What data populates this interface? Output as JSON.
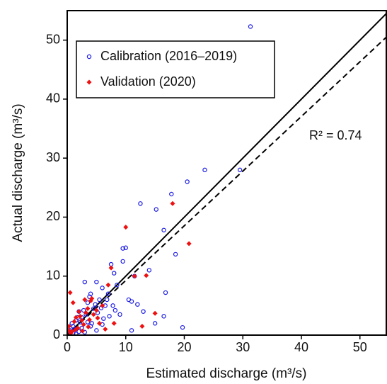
{
  "chart_data": {
    "type": "scatter",
    "x_label": "Estimated discharge (m³/s)",
    "y_label": "Actual discharge (m³/s)",
    "annotation": "R² = 0.74",
    "xlim": [
      0,
      54.5
    ],
    "ylim": [
      0,
      55
    ],
    "xticks": [
      0,
      10,
      20,
      30,
      40,
      50
    ],
    "yticks": [
      0,
      10,
      20,
      30,
      40,
      50
    ],
    "legend": "upper left",
    "series": [
      {
        "name": "Calibration (2016–2019)",
        "color": "#1a1ae6",
        "marker": "circle",
        "x": [
          31.3,
          29.5,
          23.5,
          20.5,
          17.8,
          12.5,
          15.2,
          16.5,
          18.5,
          10,
          9.5,
          9.5,
          14,
          11.5,
          8,
          7.5,
          16.8,
          11,
          16.5,
          19.7,
          11,
          15,
          13,
          6,
          5,
          3,
          4,
          8.5,
          7,
          6.5,
          5.5,
          4.5,
          3.5,
          2.5,
          2,
          1.5,
          1,
          0.5,
          0.3,
          0.8,
          1.2,
          1.8,
          2.2,
          2.8,
          3.2,
          3.8,
          4.2,
          4.8,
          5.2,
          5.8,
          6.2,
          6.8,
          7.2,
          7.8,
          8.2,
          9,
          10.5,
          12,
          2.5,
          3,
          1,
          0.6,
          1.5,
          2,
          4,
          5,
          6,
          0.2,
          0.4,
          3.5
        ],
        "values": [
          52.3,
          28,
          28,
          26,
          23.9,
          22.3,
          21.3,
          17.8,
          13.7,
          14.8,
          14.7,
          12.5,
          11,
          10,
          10.5,
          12,
          7.2,
          5.7,
          3.2,
          1.3,
          0.8,
          2,
          4,
          8,
          9,
          9,
          7,
          8.5,
          7,
          5,
          6,
          4.5,
          5.5,
          3,
          4,
          2.5,
          1.5,
          0.8,
          0.3,
          2,
          1,
          3,
          2.2,
          4.2,
          3.5,
          6.5,
          2,
          5.2,
          3.8,
          4.6,
          2.8,
          6,
          3.2,
          5,
          4.2,
          3.5,
          6,
          5.2,
          1.2,
          0.5,
          0.3,
          1.1,
          0.2,
          0.6,
          1.5,
          0.8,
          1.8,
          0.1,
          0.6,
          2.2
        ]
      },
      {
        "name": "Validation (2020)",
        "color": "#ee1111",
        "marker": "diamond",
        "x": [
          18,
          10,
          20.8,
          7.5,
          13.5,
          11.5,
          15,
          12.8,
          0.5,
          1,
          2,
          3,
          6.5,
          8,
          1.5,
          2.5,
          3.5,
          4,
          4.5,
          5,
          5.5,
          6,
          0.3,
          0.8,
          1.2,
          1.8,
          2.2,
          2.8,
          3.2,
          3.8,
          4.2,
          7,
          0.6,
          1.4,
          2.6,
          3.6,
          5.2,
          0.2
        ],
        "values": [
          22.3,
          18.3,
          15.5,
          11.4,
          10.1,
          10,
          3.7,
          1.5,
          7.2,
          5.5,
          4,
          6,
          1,
          2,
          3,
          2.5,
          4.5,
          5.8,
          3.5,
          4.2,
          2,
          5,
          1.5,
          0.6,
          2.3,
          1.2,
          3.2,
          1.8,
          3.8,
          2.6,
          6.2,
          8.5,
          0.3,
          0.9,
          0.7,
          1.4,
          2.9,
          0.8
        ]
      }
    ],
    "reference_lines": [
      {
        "style": "solid",
        "x": [
          0,
          54.5
        ],
        "y": [
          0,
          54.5
        ]
      },
      {
        "style": "dashed",
        "x": [
          0,
          54.5
        ],
        "y": [
          0,
          50.5
        ]
      }
    ]
  }
}
